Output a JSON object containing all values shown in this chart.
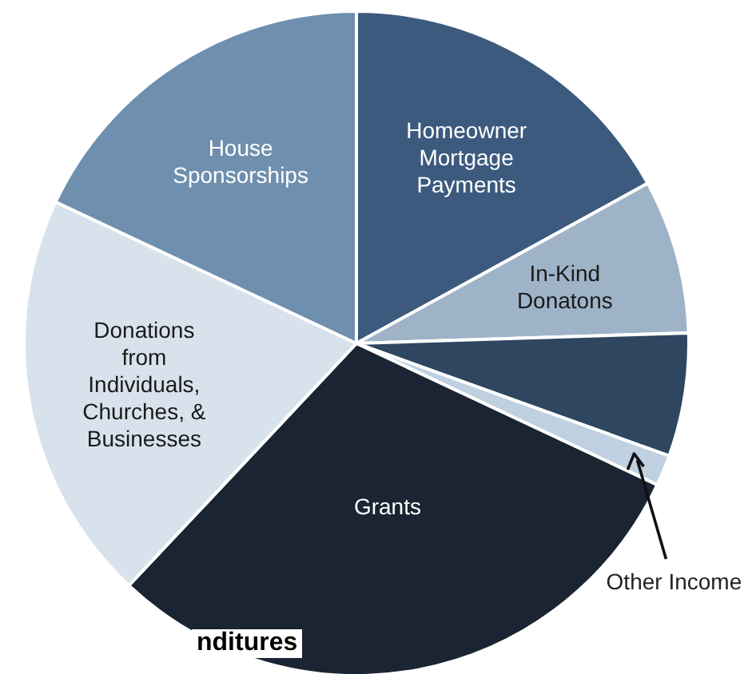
{
  "chart_data": {
    "type": "pie",
    "categories": [
      "Homeowner Mortgage Payments",
      "In-Kind Donatons",
      null,
      "Other Income",
      "Grants",
      "Donations from Individuals, Churches, & Businesses",
      "House Sponsorships"
    ],
    "values": [
      17,
      7.5,
      6,
      1.5,
      30,
      20,
      18
    ],
    "colors": [
      "#3c5a7e",
      "#9fb3c8",
      "#2e4660",
      "#bfd0e0",
      "#1a2433",
      "#d8e2ec",
      "#6f8fae"
    ],
    "annotations": [
      "nditures"
    ]
  }
}
